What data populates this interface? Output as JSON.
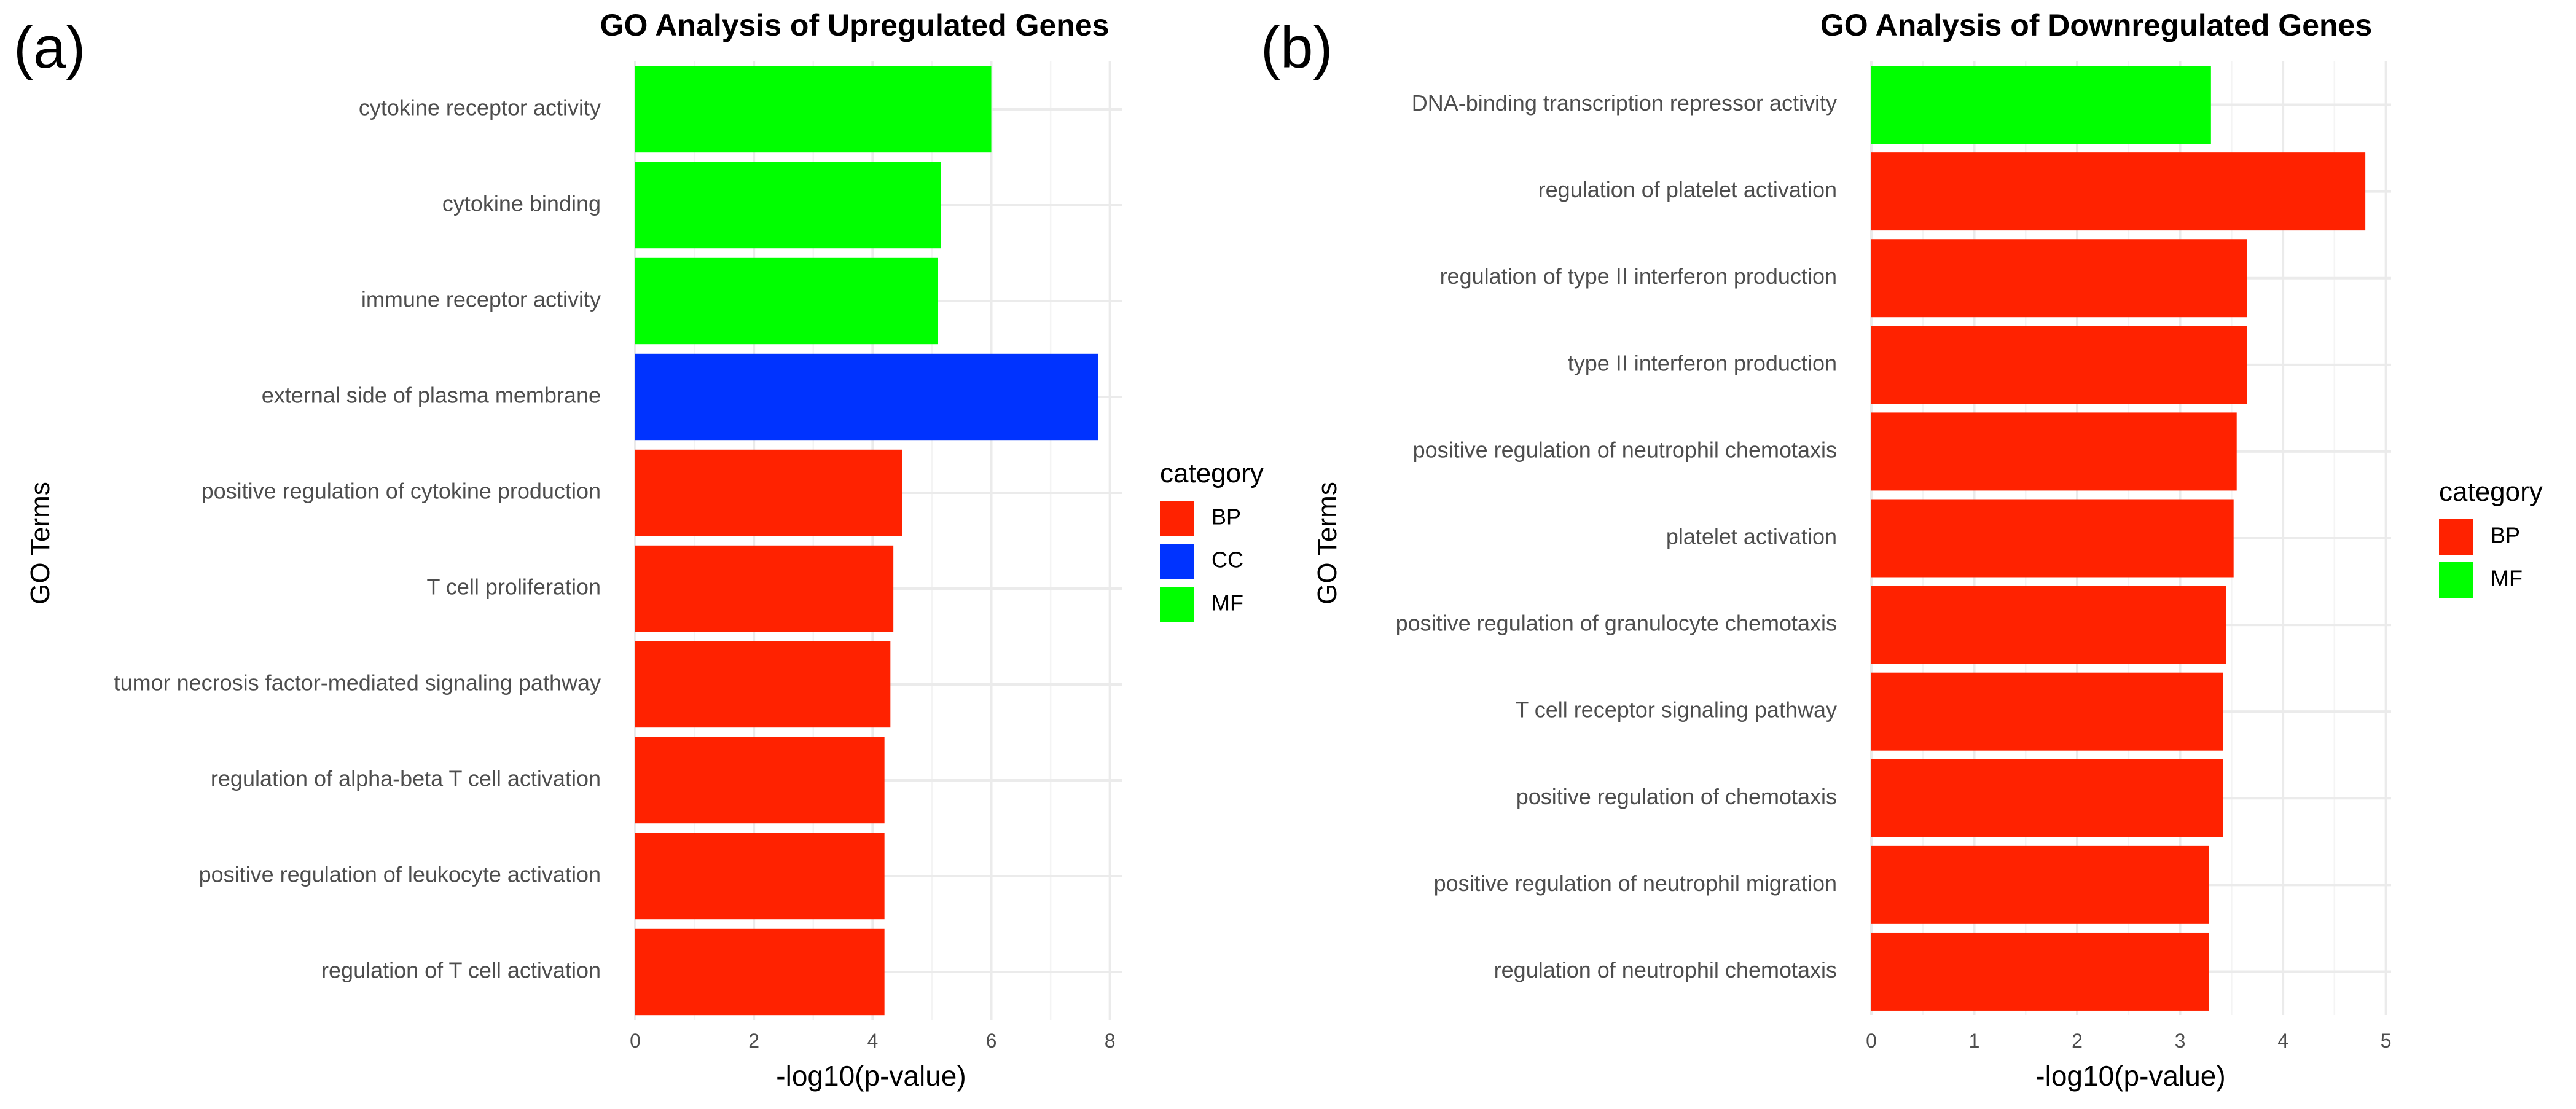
{
  "chart_data": [
    {
      "panel_label": "(a)",
      "type": "bar",
      "orientation": "horizontal",
      "title": "GO Analysis of Upregulated Genes",
      "xlabel": "-log10(p-value)",
      "ylabel": "GO Terms",
      "xlim": [
        0,
        8.2
      ],
      "xticks": [
        0,
        2,
        4,
        6,
        8
      ],
      "grid": true,
      "legend": {
        "title": "category",
        "placement": "right",
        "entries": [
          {
            "label": "BP",
            "color": "#ff2200"
          },
          {
            "label": "CC",
            "color": "#0033ff"
          },
          {
            "label": "MF",
            "color": "#00ff00"
          }
        ]
      },
      "categories": [
        "cytokine receptor activity",
        "cytokine binding",
        "immune receptor activity",
        "external side of plasma membrane",
        "positive regulation of cytokine production",
        "T cell proliferation",
        "tumor necrosis factor-mediated signaling pathway",
        "regulation of alpha-beta T cell activation",
        "positive regulation of leukocyte activation",
        "regulation of T cell activation"
      ],
      "values": [
        6.0,
        5.15,
        5.1,
        7.8,
        4.5,
        4.35,
        4.3,
        4.2,
        4.2,
        4.2
      ],
      "bar_categories": [
        "MF",
        "MF",
        "MF",
        "CC",
        "BP",
        "BP",
        "BP",
        "BP",
        "BP",
        "BP"
      ]
    },
    {
      "panel_label": "(b)",
      "type": "bar",
      "orientation": "horizontal",
      "title": "GO Analysis of Downregulated Genes",
      "xlabel": "-log10(p-value)",
      "ylabel": "GO Terms",
      "xlim": [
        0,
        5.05
      ],
      "xticks": [
        0,
        1,
        2,
        3,
        4,
        5
      ],
      "grid": true,
      "legend": {
        "title": "category",
        "placement": "right",
        "entries": [
          {
            "label": "BP",
            "color": "#ff2200"
          },
          {
            "label": "MF",
            "color": "#00ff00"
          }
        ]
      },
      "categories": [
        "DNA-binding transcription repressor activity",
        "regulation of platelet activation",
        "regulation of type II interferon production",
        "type II interferon production",
        "positive regulation of neutrophil chemotaxis",
        "platelet activation",
        "positive regulation of granulocyte chemotaxis",
        "T cell receptor signaling pathway",
        "positive regulation of chemotaxis",
        "positive regulation of neutrophil migration",
        "regulation of neutrophil chemotaxis"
      ],
      "values": [
        3.3,
        4.8,
        3.65,
        3.65,
        3.55,
        3.52,
        3.45,
        3.42,
        3.42,
        3.28,
        3.28
      ],
      "bar_categories": [
        "MF",
        "BP",
        "BP",
        "BP",
        "BP",
        "BP",
        "BP",
        "BP",
        "BP",
        "BP",
        "BP"
      ]
    }
  ]
}
